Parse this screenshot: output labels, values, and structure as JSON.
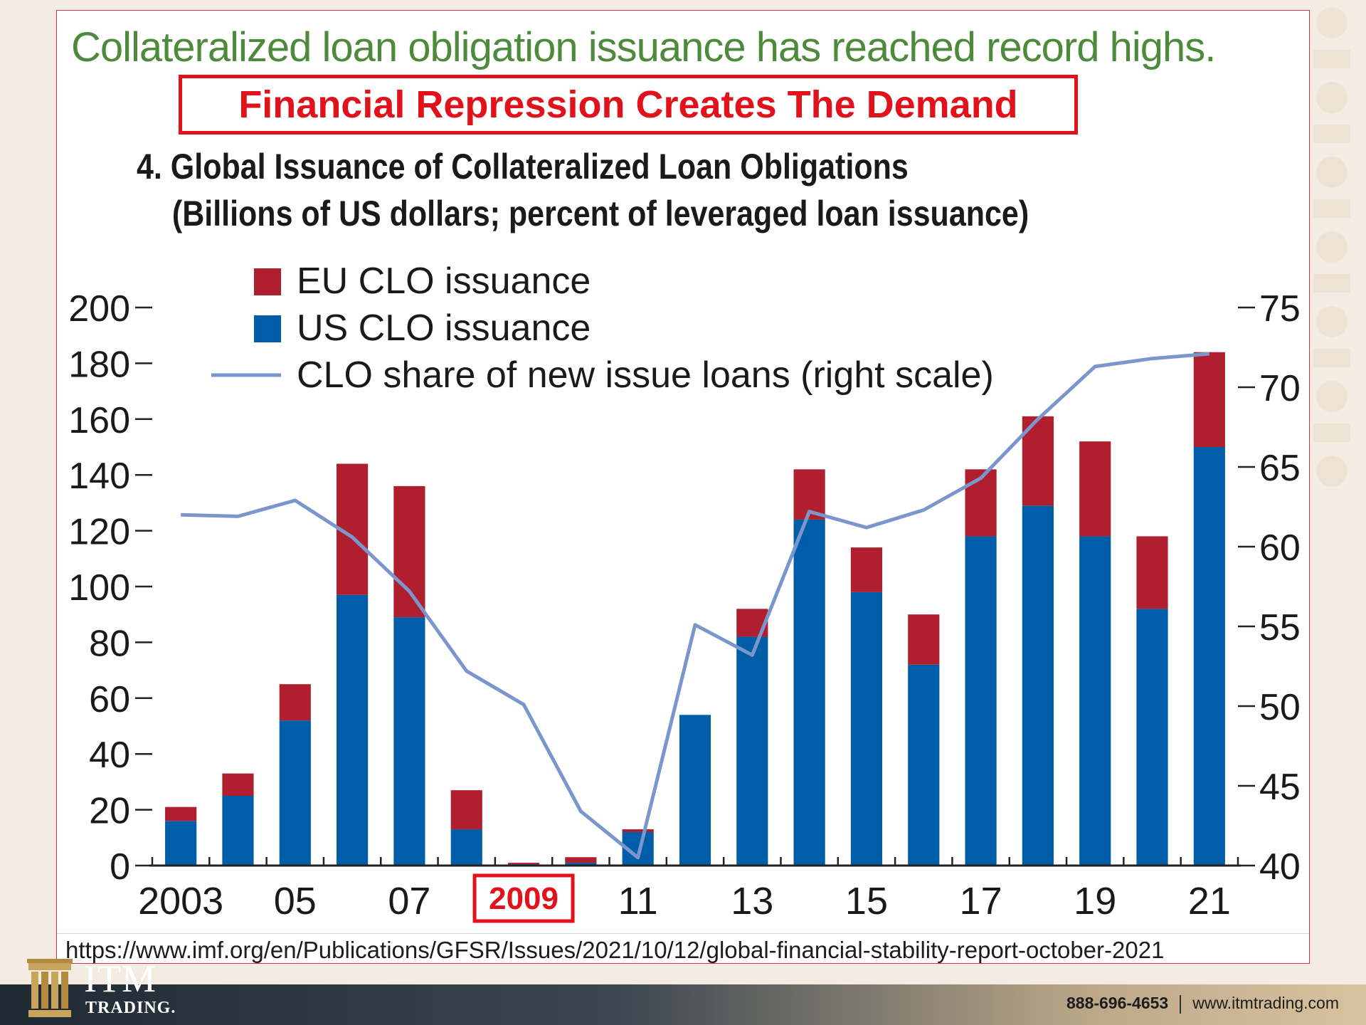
{
  "slide": {
    "headline": "Collateralized loan obligation issuance has reached record highs.",
    "banner": "Financial Repression Creates The Demand",
    "source_url": "https://www.imf.org/en/Publications/GFSR/Issues/2021/10/12/global-financial-stability-report-october-2021",
    "highlight_label": "2009"
  },
  "footer": {
    "logo_name": "ITM",
    "logo_sub": "TRADING.",
    "phone": "888-696-4653",
    "website": "www.itmtrading.com"
  },
  "colors": {
    "eu": "#b01f2e",
    "us": "#005ea8",
    "line": "#7b96cc",
    "highlight": "#e1121b",
    "headline_green": "#4d8a3c"
  },
  "chart_data": {
    "type": "bar",
    "title": "4. Global Issuance of Collateralized Loan Obligations",
    "subtitle": "(Billions of US dollars; percent of leveraged loan issuance)",
    "categories": [
      "2003",
      "2004",
      "2005",
      "2006",
      "2007",
      "2008",
      "2009",
      "2010",
      "2011",
      "2012",
      "2013",
      "2014",
      "2015",
      "2016",
      "2017",
      "2018",
      "2019",
      "2020",
      "2021"
    ],
    "x_tick_labels": [
      "2003",
      "05",
      "07",
      "2009",
      "11",
      "13",
      "15",
      "17",
      "19",
      "21"
    ],
    "stacked": true,
    "series": [
      {
        "name": "US CLO issuance",
        "color": "#005ea8",
        "values": [
          16,
          25,
          52,
          97,
          89,
          13,
          0.5,
          1,
          12,
          54,
          82,
          124,
          98,
          72,
          118,
          129,
          118,
          92,
          150
        ]
      },
      {
        "name": "EU CLO issuance",
        "color": "#b01f2e",
        "values": [
          5,
          8,
          13,
          47,
          47,
          14,
          0.5,
          2,
          1,
          0,
          10,
          18,
          16,
          18,
          24,
          32,
          34,
          26,
          34
        ]
      }
    ],
    "line_series": {
      "name": "CLO share of new issue loans (right scale)",
      "color": "#7b96cc",
      "axis": "right",
      "values": [
        62,
        61.9,
        62.9,
        60.6,
        57.2,
        52.2,
        50.1,
        43.4,
        40.5,
        55.1,
        53.2,
        62.2,
        61.2,
        62.3,
        64.3,
        68,
        71.3,
        71.8,
        72.1
      ]
    },
    "y_left": {
      "ticks": [
        0,
        20,
        40,
        60,
        80,
        100,
        120,
        140,
        160,
        180,
        200
      ],
      "ylim": [
        0,
        200
      ]
    },
    "y_right": {
      "ticks": [
        40,
        45,
        50,
        55,
        60,
        65,
        70,
        75
      ],
      "ylim": [
        40,
        75
      ]
    },
    "legend": [
      "EU CLO issuance",
      "US CLO issuance",
      "CLO share of new issue loans (right scale)"
    ],
    "legend_position": "top-left",
    "grid": false
  }
}
